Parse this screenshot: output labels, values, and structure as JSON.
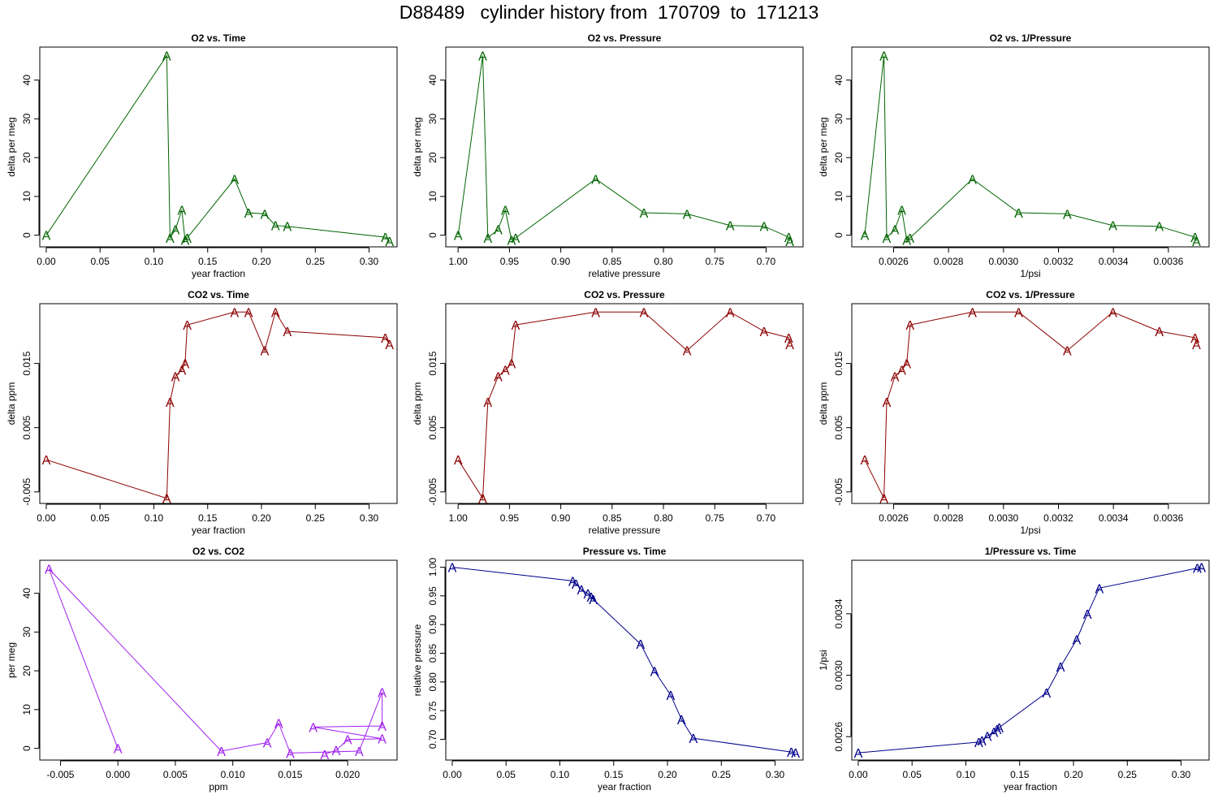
{
  "title": "D88489   cylinder history from  170709  to  171213",
  "chart_data": [
    {
      "type": "line",
      "title": "O2 vs. Time",
      "xlabel": "year fraction",
      "ylabel": "delta per meg",
      "xlim": [
        -0.006,
        0.326
      ],
      "ylim": [
        -3,
        48.5
      ],
      "xreverse": false,
      "xticks": [
        0,
        0.05,
        0.1,
        0.15,
        0.2,
        0.25,
        0.3
      ],
      "xtick_labels": [
        "0.00",
        "0.05",
        "0.10",
        "0.15",
        "0.20",
        "0.25",
        "0.30"
      ],
      "yticks": [
        0,
        10,
        20,
        30,
        40
      ],
      "ytick_labels": [
        "0",
        "10",
        "20",
        "30",
        "40"
      ],
      "color": "#006400",
      "marker": "A",
      "x": [
        0.0,
        0.112,
        0.115,
        0.12,
        0.126,
        0.129,
        0.131,
        0.175,
        0.188,
        0.203,
        0.213,
        0.224,
        0.315,
        0.319
      ],
      "y": [
        0.0,
        46.3,
        -0.7,
        1.5,
        6.5,
        -1.2,
        -0.7,
        14.5,
        5.8,
        5.5,
        2.5,
        2.3,
        -0.5,
        -1.5
      ]
    },
    {
      "type": "line",
      "title": "O2 vs. Pressure",
      "xlabel": "relative pressure",
      "ylabel": "delta per meg",
      "xlim": [
        1.012,
        0.664
      ],
      "ylim": [
        -3,
        48.5
      ],
      "xreverse": true,
      "xticks": [
        1.0,
        0.95,
        0.9,
        0.85,
        0.8,
        0.75,
        0.7
      ],
      "xtick_labels": [
        "1.00",
        "0.95",
        "0.90",
        "0.85",
        "0.80",
        "0.75",
        "0.70"
      ],
      "yticks": [
        0,
        10,
        20,
        30,
        40
      ],
      "ytick_labels": [
        "0",
        "10",
        "20",
        "30",
        "40"
      ],
      "color": "#006400",
      "marker": "A",
      "x": [
        1.0,
        0.976,
        0.971,
        0.961,
        0.954,
        0.948,
        0.944,
        0.866,
        0.819,
        0.777,
        0.735,
        0.702,
        0.678,
        0.677
      ],
      "y": [
        0.0,
        46.3,
        -0.7,
        1.5,
        6.5,
        -1.2,
        -0.7,
        14.5,
        5.8,
        5.5,
        2.5,
        2.3,
        -0.5,
        -1.5
      ]
    },
    {
      "type": "line",
      "title": "O2 vs. 1/Pressure",
      "xlabel": "1/psi",
      "ylabel": "delta per meg",
      "xlim": [
        0.002448,
        0.003748
      ],
      "ylim": [
        -3,
        48.5
      ],
      "xreverse": false,
      "xticks": [
        0.0026,
        0.0028,
        0.003,
        0.0032,
        0.0034,
        0.0036
      ],
      "xtick_labels": [
        "0.0026",
        "0.0028",
        "0.0030",
        "0.0032",
        "0.0034",
        "0.0036"
      ],
      "yticks": [
        0,
        10,
        20,
        30,
        40
      ],
      "ytick_labels": [
        "0",
        "10",
        "20",
        "30",
        "40"
      ],
      "color": "#006400",
      "marker": "A",
      "x": [
        0.002495,
        0.002565,
        0.002575,
        0.002605,
        0.00263,
        0.002648,
        0.00266,
        0.002887,
        0.003055,
        0.003232,
        0.003398,
        0.003567,
        0.003697,
        0.003702
      ],
      "y": [
        0.0,
        46.3,
        -0.7,
        1.5,
        6.5,
        -1.2,
        -0.7,
        14.5,
        5.8,
        5.5,
        2.5,
        2.3,
        -0.5,
        -1.5
      ]
    },
    {
      "type": "line",
      "title": "CO2 vs. Time",
      "xlabel": "year fraction",
      "ylabel": "delta ppm",
      "xlim": [
        -0.006,
        0.326
      ],
      "ylim": [
        -0.0068,
        0.0243
      ],
      "xreverse": false,
      "xticks": [
        0,
        0.05,
        0.1,
        0.15,
        0.2,
        0.25,
        0.3
      ],
      "xtick_labels": [
        "0.00",
        "0.05",
        "0.10",
        "0.15",
        "0.20",
        "0.25",
        "0.30"
      ],
      "yticks": [
        -0.005,
        0.005,
        0.015
      ],
      "ytick_labels": [
        "-0.005",
        "0.005",
        "0.015"
      ],
      "color": "#8B0000",
      "marker": "A",
      "x": [
        0.0,
        0.112,
        0.115,
        0.12,
        0.126,
        0.129,
        0.131,
        0.175,
        0.188,
        0.203,
        0.213,
        0.224,
        0.315,
        0.319
      ],
      "y": [
        0.0,
        -0.006,
        0.009,
        0.013,
        0.014,
        0.015,
        0.021,
        0.023,
        0.023,
        0.017,
        0.023,
        0.02,
        0.019,
        0.018
      ]
    },
    {
      "type": "line",
      "title": "CO2 vs. Pressure",
      "xlabel": "relative pressure",
      "ylabel": "delta ppm",
      "xlim": [
        1.012,
        0.664
      ],
      "ylim": [
        -0.0068,
        0.0243
      ],
      "xreverse": true,
      "xticks": [
        1.0,
        0.95,
        0.9,
        0.85,
        0.8,
        0.75,
        0.7
      ],
      "xtick_labels": [
        "1.00",
        "0.95",
        "0.90",
        "0.85",
        "0.80",
        "0.75",
        "0.70"
      ],
      "yticks": [
        -0.005,
        0.005,
        0.015
      ],
      "ytick_labels": [
        "-0.005",
        "0.005",
        "0.015"
      ],
      "color": "#8B0000",
      "marker": "A",
      "x": [
        1.0,
        0.976,
        0.971,
        0.961,
        0.954,
        0.948,
        0.944,
        0.866,
        0.819,
        0.777,
        0.735,
        0.702,
        0.678,
        0.677
      ],
      "y": [
        0.0,
        -0.006,
        0.009,
        0.013,
        0.014,
        0.015,
        0.021,
        0.023,
        0.023,
        0.017,
        0.023,
        0.02,
        0.019,
        0.018
      ]
    },
    {
      "type": "line",
      "title": "CO2 vs. 1/Pressure",
      "xlabel": "1/psi",
      "ylabel": "delta ppm",
      "xlim": [
        0.002448,
        0.003748
      ],
      "ylim": [
        -0.0068,
        0.0243
      ],
      "xreverse": false,
      "xticks": [
        0.0026,
        0.0028,
        0.003,
        0.0032,
        0.0034,
        0.0036
      ],
      "xtick_labels": [
        "0.0026",
        "0.0028",
        "0.0030",
        "0.0032",
        "0.0034",
        "0.0036"
      ],
      "yticks": [
        -0.005,
        0.005,
        0.015
      ],
      "ytick_labels": [
        "-0.005",
        "0.005",
        "0.015"
      ],
      "color": "#8B0000",
      "marker": "A",
      "x": [
        0.002495,
        0.002565,
        0.002575,
        0.002605,
        0.00263,
        0.002648,
        0.00266,
        0.002887,
        0.003055,
        0.003232,
        0.003398,
        0.003567,
        0.003697,
        0.003702
      ],
      "y": [
        0.0,
        -0.006,
        0.009,
        0.013,
        0.014,
        0.015,
        0.021,
        0.023,
        0.023,
        0.017,
        0.023,
        0.02,
        0.019,
        0.018
      ]
    },
    {
      "type": "line",
      "title": "O2 vs. CO2",
      "xlabel": "ppm",
      "ylabel": "per meg",
      "xlim": [
        -0.0068,
        0.0243
      ],
      "ylim": [
        -3,
        48.5
      ],
      "xreverse": false,
      "xticks": [
        -0.005,
        0.0,
        0.005,
        0.01,
        0.015,
        0.02
      ],
      "xtick_labels": [
        "-0.005",
        "0.000",
        "0.005",
        "0.010",
        "0.015",
        "0.020"
      ],
      "yticks": [
        0,
        10,
        20,
        30,
        40
      ],
      "ytick_labels": [
        "0",
        "10",
        "20",
        "30",
        "40"
      ],
      "color": "#A020F0",
      "marker": "A",
      "x": [
        0.0,
        -0.006,
        0.009,
        0.013,
        0.014,
        0.015,
        0.021,
        0.023,
        0.023,
        0.017,
        0.023,
        0.02,
        0.019,
        0.018
      ],
      "y": [
        0.0,
        46.3,
        -0.7,
        1.5,
        6.5,
        -1.2,
        -0.7,
        14.5,
        5.8,
        5.5,
        2.5,
        2.3,
        -0.5,
        -1.5
      ]
    },
    {
      "type": "line",
      "title": "Pressure vs. Time",
      "xlabel": "year fraction",
      "ylabel": "relative pressure",
      "xlim": [
        -0.006,
        0.326
      ],
      "ylim": [
        0.664,
        1.012
      ],
      "xreverse": false,
      "xticks": [
        0,
        0.05,
        0.1,
        0.15,
        0.2,
        0.25,
        0.3
      ],
      "xtick_labels": [
        "0.00",
        "0.05",
        "0.10",
        "0.15",
        "0.20",
        "0.25",
        "0.30"
      ],
      "yticks": [
        0.7,
        0.75,
        0.8,
        0.85,
        0.9,
        0.95,
        1.0
      ],
      "ytick_labels": [
        "0.70",
        "0.75",
        "0.80",
        "0.85",
        "0.90",
        "0.95",
        "1.00"
      ],
      "color": "#00008B",
      "marker": "A",
      "x": [
        0.0,
        0.112,
        0.115,
        0.12,
        0.126,
        0.129,
        0.131,
        0.175,
        0.188,
        0.203,
        0.213,
        0.224,
        0.315,
        0.319
      ],
      "y": [
        1.0,
        0.976,
        0.971,
        0.961,
        0.954,
        0.948,
        0.944,
        0.866,
        0.819,
        0.777,
        0.735,
        0.702,
        0.678,
        0.677
      ]
    },
    {
      "type": "line",
      "title": "1/Pressure vs. Time",
      "xlabel": "year fraction",
      "ylabel": "1/psi",
      "xlim": [
        -0.006,
        0.326
      ],
      "ylim": [
        0.002448,
        0.003748
      ],
      "xreverse": false,
      "xticks": [
        0,
        0.05,
        0.1,
        0.15,
        0.2,
        0.25,
        0.3
      ],
      "xtick_labels": [
        "0.00",
        "0.05",
        "0.10",
        "0.15",
        "0.20",
        "0.25",
        "0.30"
      ],
      "yticks": [
        0.0026,
        0.003,
        0.0034
      ],
      "ytick_labels": [
        "0.0026",
        "0.0030",
        "0.0034"
      ],
      "color": "#00008B",
      "marker": "A",
      "x": [
        0.0,
        0.112,
        0.115,
        0.12,
        0.126,
        0.129,
        0.131,
        0.175,
        0.188,
        0.203,
        0.213,
        0.224,
        0.315,
        0.319
      ],
      "y": [
        0.002495,
        0.002565,
        0.002575,
        0.002605,
        0.00263,
        0.002648,
        0.00266,
        0.002887,
        0.003055,
        0.003232,
        0.003398,
        0.003567,
        0.003697,
        0.003702
      ]
    }
  ]
}
